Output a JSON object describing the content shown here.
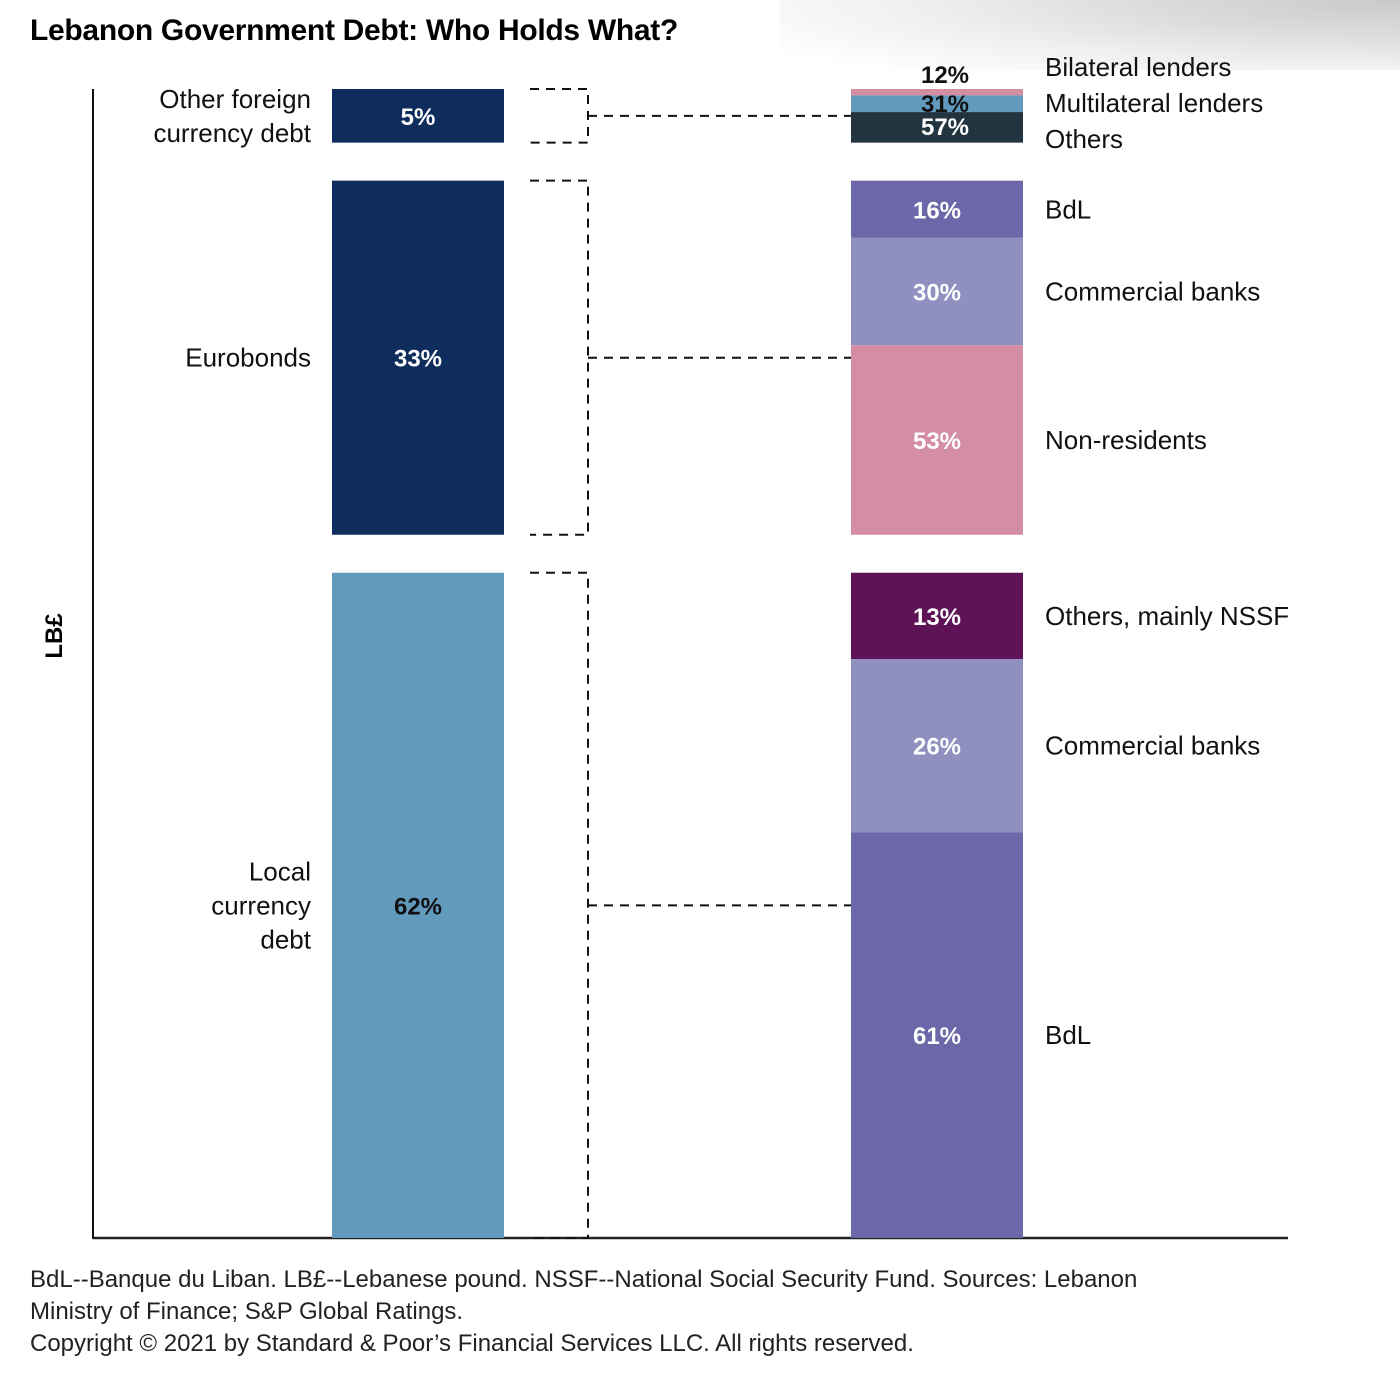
{
  "header": {
    "title": "Lebanon Government Debt: Who Holds What?"
  },
  "chart_data": {
    "type": "bar",
    "subtype": "stacked-breakdown",
    "title": "Lebanon Government Debt: Who Holds What?",
    "ylabel": "LB£",
    "xlabel": "",
    "grid": false,
    "colors": {
      "navy": "#0f2d5c",
      "steel_blue": "#629abd",
      "purple": "#6c67a8",
      "lavender": "#8f8fc0",
      "rose": "#d48ea3",
      "plum": "#5f1357",
      "charcoal": "#22343f"
    },
    "total_categories": [
      {
        "name": "Other foreign currency debt",
        "label_lines": [
          "Other foreign",
          "currency debt"
        ],
        "value": 5,
        "display": "5%",
        "color": "#0f2d5c",
        "text_color": "#ffffff"
      },
      {
        "name": "Eurobonds",
        "label_lines": [
          "Eurobonds"
        ],
        "value": 33,
        "display": "33%",
        "color": "#0f2d5c",
        "text_color": "#ffffff"
      },
      {
        "name": "Local currency debt",
        "label_lines": [
          "Local",
          "currency",
          "debt"
        ],
        "value": 62,
        "display": "62%",
        "color": "#629abd",
        "text_color": "#111111"
      }
    ],
    "breakdowns": [
      {
        "category": "Other foreign currency debt",
        "segments": [
          {
            "name": "Bilateral lenders",
            "value": 12,
            "display": "12%",
            "color": "#d48ea3",
            "text_color": "#111111"
          },
          {
            "name": "Multilateral lenders",
            "value": 31,
            "display": "31%",
            "color": "#629abd",
            "text_color": "#111111"
          },
          {
            "name": "Others",
            "value": 57,
            "display": "57%",
            "color": "#22343f",
            "text_color": "#ffffff"
          }
        ]
      },
      {
        "category": "Eurobonds",
        "segments": [
          {
            "name": "BdL",
            "value": 16,
            "display": "16%",
            "color": "#6c67a8",
            "text_color": "#ffffff"
          },
          {
            "name": "Commercial banks",
            "value": 30,
            "display": "30%",
            "color": "#8f8fc0",
            "text_color": "#ffffff"
          },
          {
            "name": "Non-residents",
            "value": 53,
            "display": "53%",
            "color": "#d48ea3",
            "text_color": "#ffffff"
          }
        ]
      },
      {
        "category": "Local currency debt",
        "segments": [
          {
            "name": "Others, mainly NSSF",
            "value": 13,
            "display": "13%",
            "color": "#5f1357",
            "text_color": "#ffffff"
          },
          {
            "name": "Commercial banks",
            "value": 26,
            "display": "26%",
            "color": "#8f8fc0",
            "text_color": "#ffffff"
          },
          {
            "name": "BdL",
            "value": 61,
            "display": "61%",
            "color": "#6c67a8",
            "text_color": "#ffffff"
          }
        ]
      }
    ]
  },
  "footer": {
    "notes_line1": "BdL--Banque du Liban. LB£--Lebanese pound. NSSF--National Social Security Fund. Sources: Lebanon",
    "notes_line2": "Ministry of Finance; S&P Global Ratings.",
    "copyright": "Copyright © 2021 by Standard & Poor’s Financial Services LLC. All rights reserved."
  }
}
